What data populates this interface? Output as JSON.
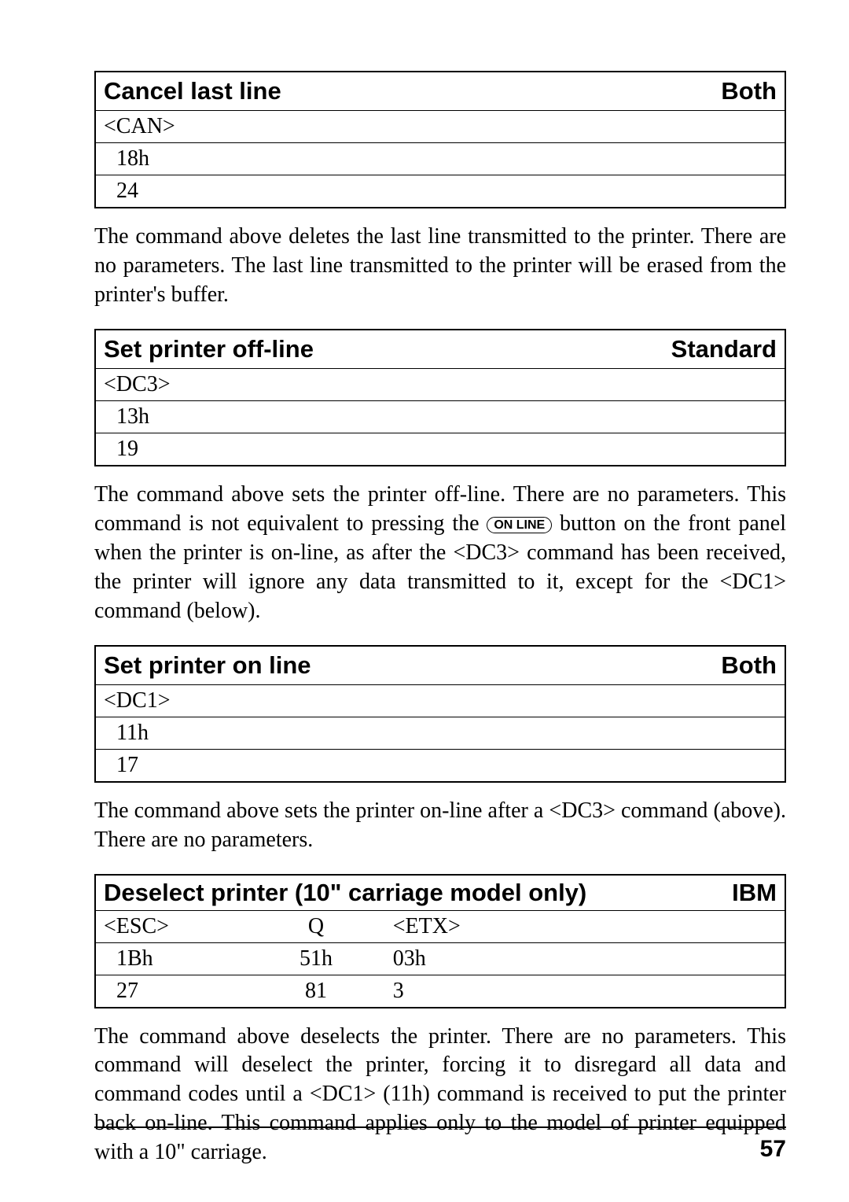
{
  "section1": {
    "title": "Cancel last line",
    "mode": "Both",
    "code": "<CAN>",
    "hex": "18h",
    "dec": "24",
    "description": "The command above deletes the last line transmitted to the printer.  There are no parameters. The last line transmitted to the printer will be erased from the printer's buffer."
  },
  "section2": {
    "title": "Set printer off-line",
    "mode": "Standard",
    "code": "<DC3>",
    "hex": "13h",
    "dec": "19",
    "desc_part1": "The command above sets the printer off-line. There are no parameters. This command is not equivalent to pressing the ",
    "button_label": "ON LINE",
    "desc_part2": " button on the front panel when the printer is on-line, as after the <DC3> command has been received, the printer will ignore any data transmitted to it, except for the <DC1> command (below)."
  },
  "section3": {
    "title": "Set printer on line",
    "mode": "Both",
    "code": "<DC1>",
    "hex": "11h",
    "dec": "17",
    "description": "The command above sets the printer on-line after a <DC3> command (above). There are no parameters."
  },
  "section4": {
    "title": "Deselect printer (10\" carriage model only)",
    "mode": "IBM",
    "row1": {
      "c1": "<ESC>",
      "c2": "Q",
      "c3": "<ETX>"
    },
    "row2": {
      "c1": "1Bh",
      "c2": "51h",
      "c3": "03h"
    },
    "row3": {
      "c1": "27",
      "c2": "81",
      "c3": "3"
    },
    "description": "The command above deselects the printer. There are no parameters. This command will deselect the printer, forcing it to disregard all data and command codes until a <DC1> (11h) command is received to put the printer back on-line. This command applies only to the model of printer equipped with a 10\" carriage."
  },
  "page_number": "57"
}
